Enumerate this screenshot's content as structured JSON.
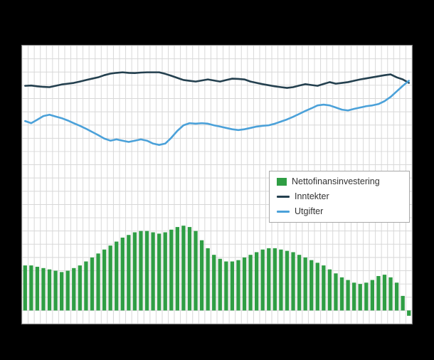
{
  "chart_data": {
    "type": "combo",
    "title": "",
    "xlabel": "",
    "ylabel": "",
    "note": "No axis tick labels, axis titles or chart title are visible in the image. Values are estimated on a relative 0-100 scale read from the plot geometry. 64 periods (appears quarterly).",
    "ylim": [
      -5,
      100
    ],
    "grid": true,
    "legend_position": "inside-right",
    "n_points": 64,
    "bars": {
      "name": "Nettofinansinvestering",
      "color": "#2f9e44",
      "values": [
        17,
        17,
        16.5,
        16,
        15.5,
        15,
        14.5,
        15,
        16,
        17,
        18.5,
        20,
        21.5,
        23,
        24.5,
        26,
        27.5,
        28.5,
        29.5,
        30,
        30,
        29.5,
        29,
        29.5,
        30.5,
        31.5,
        32,
        31.5,
        30,
        26.5,
        23.5,
        21,
        19.5,
        18.5,
        18.5,
        19,
        20,
        21,
        22,
        23,
        23.5,
        23.5,
        23,
        22.5,
        22,
        21,
        20,
        19,
        18,
        17,
        15.5,
        14,
        12.5,
        11.5,
        10.5,
        10,
        10.5,
        11.5,
        13,
        13.5,
        12.5,
        10.5,
        5.5,
        -2
      ]
    },
    "lines": [
      {
        "name": "Inntekter",
        "color": "#24404f",
        "values": [
          84.8,
          84.9,
          84.6,
          84.4,
          84.3,
          84.8,
          85.3,
          85.6,
          85.9,
          86.4,
          87.0,
          87.5,
          88.0,
          88.8,
          89.4,
          89.7,
          89.9,
          89.7,
          89.6,
          89.8,
          89.9,
          89.9,
          89.9,
          89.3,
          88.6,
          87.8,
          87.0,
          86.7,
          86.4,
          86.8,
          87.2,
          86.8,
          86.4,
          87.0,
          87.5,
          87.4,
          87.2,
          86.4,
          85.9,
          85.4,
          85.0,
          84.6,
          84.3,
          84.0,
          84.3,
          84.9,
          85.4,
          85.1,
          84.8,
          85.5,
          86.2,
          85.6,
          85.9,
          86.2,
          86.7,
          87.2,
          87.6,
          88.0,
          88.4,
          88.8,
          89.1,
          88.0,
          87.2,
          85.9
        ]
      },
      {
        "name": "Utgifter",
        "color": "#4ba1d9",
        "values": [
          71.5,
          70.7,
          72.0,
          73.4,
          73.9,
          73.2,
          72.6,
          71.7,
          70.7,
          69.7,
          68.6,
          67.4,
          66.2,
          64.9,
          64.1,
          64.6,
          64.1,
          63.6,
          64.1,
          64.6,
          64.1,
          63.0,
          62.5,
          63.0,
          65.2,
          67.8,
          69.9,
          70.7,
          70.5,
          70.7,
          70.5,
          69.9,
          69.4,
          68.9,
          68.4,
          68.1,
          68.4,
          68.9,
          69.4,
          69.7,
          69.9,
          70.5,
          71.3,
          72.1,
          73.1,
          74.2,
          75.3,
          76.3,
          77.4,
          77.7,
          77.4,
          76.6,
          75.8,
          75.5,
          76.1,
          76.6,
          77.1,
          77.4,
          77.9,
          79.0,
          80.6,
          82.7,
          84.8,
          86.7
        ]
      }
    ]
  },
  "colors": {
    "background": "#000000",
    "plot_background": "#ffffff",
    "gridline": "#d8d8d8",
    "plot_border": "#7e7e7e",
    "legend_border": "#a8a8a8",
    "legend_text": "#333333"
  }
}
